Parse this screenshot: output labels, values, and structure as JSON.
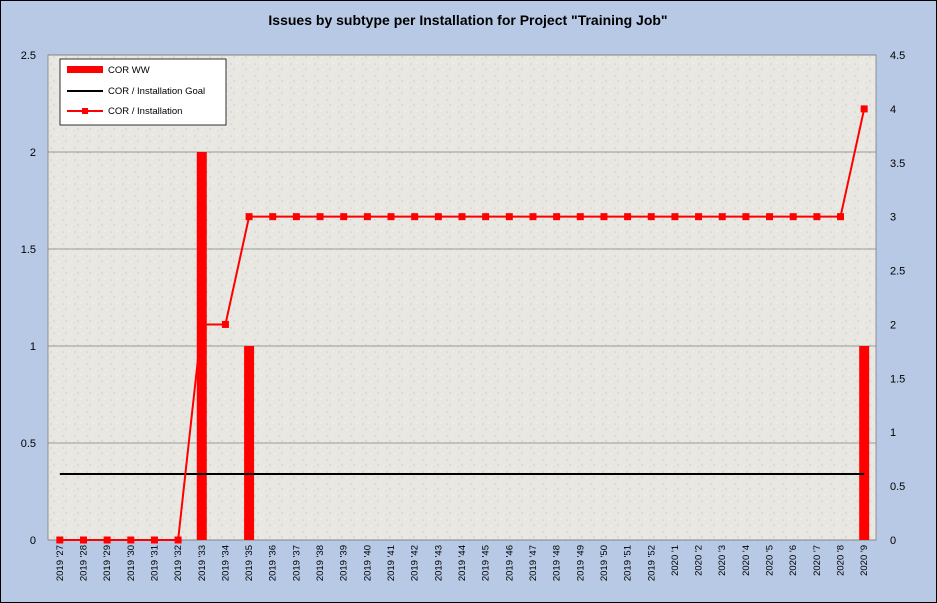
{
  "chart_data": {
    "type": "bar",
    "title": "Issues by subtype per Installation for Project \"Training Job\"",
    "categories": [
      "2019 '27",
      "2019 '28",
      "2019 '29",
      "2019 '30",
      "2019 '31",
      "2019 '32",
      "2019 '33",
      "2019 '34",
      "2019 '35",
      "2019 '36",
      "2019 '37",
      "2019 '38",
      "2019 '39",
      "2019 '40",
      "2019 '41",
      "2019 '42",
      "2019 '43",
      "2019 '44",
      "2019 '45",
      "2019 '46",
      "2019 '47",
      "2019 '48",
      "2019 '49",
      "2019 '50",
      "2019 '51",
      "2019 '52",
      "2020 '1",
      "2020 '2",
      "2020 '3",
      "2020 '4",
      "2020 '5",
      "2020 '6",
      "2020 '7",
      "2020 '8",
      "2020 '9"
    ],
    "y_left": {
      "min": 0,
      "max": 2.5,
      "ticks": [
        "0",
        "0.5",
        "1",
        "1.5",
        "2",
        "2.5"
      ]
    },
    "y_right": {
      "min": 0,
      "max": 4.5,
      "ticks": [
        "0",
        "0.5",
        "1",
        "1.5",
        "2",
        "2.5",
        "3",
        "3.5",
        "4",
        "4.5"
      ]
    },
    "series": [
      {
        "name": "COR WW",
        "type": "bar",
        "axis": "left",
        "color": "#ff0000",
        "values": [
          0,
          0,
          0,
          0,
          0,
          0,
          2,
          0,
          1,
          0,
          0,
          0,
          0,
          0,
          0,
          0,
          0,
          0,
          0,
          0,
          0,
          0,
          0,
          0,
          0,
          0,
          0,
          0,
          0,
          0,
          0,
          0,
          0,
          0,
          1
        ]
      },
      {
        "name": "COR / Installation Goal",
        "type": "line",
        "axis": "left",
        "color": "#000000",
        "values": [
          0.34,
          0.34,
          0.34,
          0.34,
          0.34,
          0.34,
          0.34,
          0.34,
          0.34,
          0.34,
          0.34,
          0.34,
          0.34,
          0.34,
          0.34,
          0.34,
          0.34,
          0.34,
          0.34,
          0.34,
          0.34,
          0.34,
          0.34,
          0.34,
          0.34,
          0.34,
          0.34,
          0.34,
          0.34,
          0.34,
          0.34,
          0.34,
          0.34,
          0.34,
          0.34
        ]
      },
      {
        "name": "COR / Installation",
        "type": "line-markers",
        "axis": "right",
        "color": "#ff0000",
        "values": [
          0,
          0,
          0,
          0,
          0,
          0,
          2,
          2,
          3,
          3,
          3,
          3,
          3,
          3,
          3,
          3,
          3,
          3,
          3,
          3,
          3,
          3,
          3,
          3,
          3,
          3,
          3,
          3,
          3,
          3,
          3,
          3,
          3,
          3,
          4
        ]
      }
    ],
    "grid": "horizontal",
    "legend_placement": "top-left"
  }
}
